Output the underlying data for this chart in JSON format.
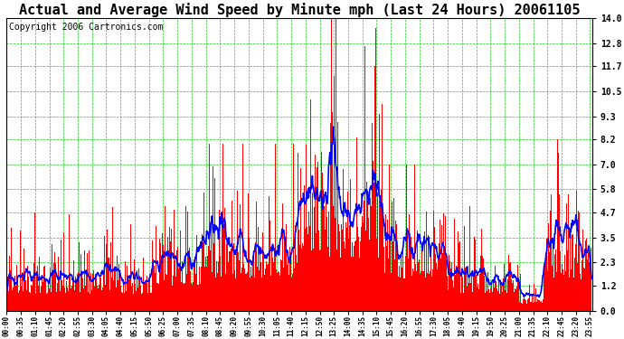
{
  "title": "Actual and Average Wind Speed by Minute mph (Last 24 Hours) 20061105",
  "copyright": "Copyright 2006 Cartronics.com",
  "yticks": [
    0.0,
    1.2,
    2.3,
    3.5,
    4.7,
    5.8,
    7.0,
    8.2,
    9.3,
    10.5,
    11.7,
    12.8,
    14.0
  ],
  "ytick_labels": [
    "0.0",
    "1.2",
    "2.3",
    "3.5",
    "4.7",
    "5.8",
    "7.0",
    "8.2",
    "9.3",
    "10.5",
    "11.7",
    "12.8",
    "14.0"
  ],
  "ylim": [
    0.0,
    14.0
  ],
  "bar_color": "#FF0000",
  "line_color": "#0000FF",
  "grid_color": "#00CC00",
  "bg_color": "#FFFFFF",
  "title_fontsize": 11,
  "copyright_fontsize": 7,
  "n_minutes": 1440,
  "avg_window": 15,
  "xtick_step": 35
}
